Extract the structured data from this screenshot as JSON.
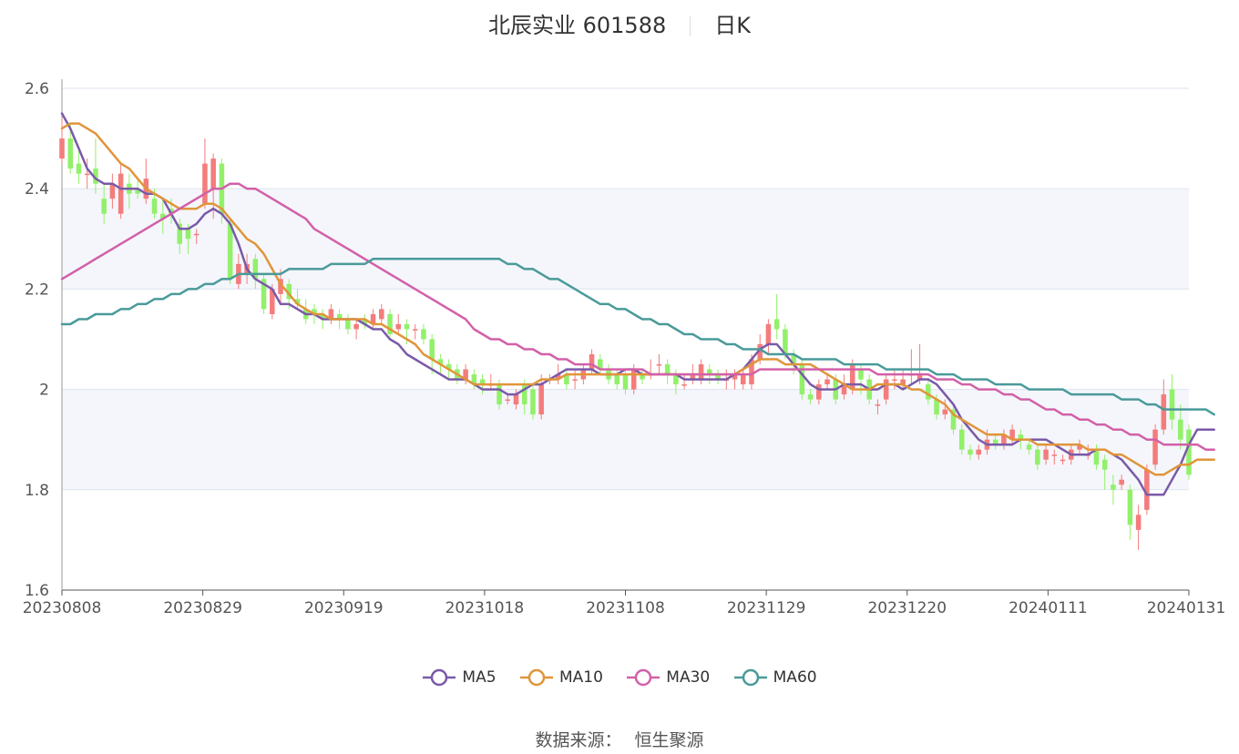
{
  "title": {
    "stock": "北辰实业 601588",
    "period": "日K"
  },
  "source": {
    "label": "数据来源：",
    "name": "恒生聚源"
  },
  "colors": {
    "up": "#f47c7c",
    "down": "#92f06a",
    "MA5": "#7a5aa8",
    "MA10": "#e0953a",
    "MA30": "#d260a8",
    "MA60": "#4a9a9a",
    "band": "#f4f6fb",
    "grid": "#dde3ee"
  },
  "chart_data": {
    "type": "candlestick",
    "ylim": [
      1.6,
      2.6
    ],
    "y_ticks": [
      "1.6",
      "1.8",
      "2",
      "2.2",
      "2.4",
      "2.6"
    ],
    "x_ticks": [
      "20230808",
      "20230829",
      "20230919",
      "20231018",
      "20231108",
      "20231129",
      "20231220",
      "20240111",
      "20240131"
    ],
    "grid": true,
    "legend_position": "bottom",
    "candles": [
      [
        2.46,
        2.5,
        2.54,
        2.45
      ],
      [
        2.5,
        2.44,
        2.53,
        2.43
      ],
      [
        2.45,
        2.43,
        2.48,
        2.41
      ],
      [
        2.43,
        2.43,
        2.46,
        2.4
      ],
      [
        2.44,
        2.41,
        2.5,
        2.39
      ],
      [
        2.38,
        2.35,
        2.41,
        2.33
      ],
      [
        2.38,
        2.41,
        2.43,
        2.36
      ],
      [
        2.35,
        2.43,
        2.45,
        2.34
      ],
      [
        2.41,
        2.39,
        2.43,
        2.36
      ],
      [
        2.4,
        2.39,
        2.42,
        2.38
      ],
      [
        2.38,
        2.42,
        2.46,
        2.37
      ],
      [
        2.38,
        2.35,
        2.4,
        2.34
      ],
      [
        2.35,
        2.34,
        2.38,
        2.31
      ],
      [
        2.36,
        2.35,
        2.38,
        2.33
      ],
      [
        2.33,
        2.29,
        2.34,
        2.27
      ],
      [
        2.32,
        2.3,
        2.33,
        2.27
      ],
      [
        2.31,
        2.31,
        2.32,
        2.29
      ],
      [
        2.37,
        2.45,
        2.5,
        2.36
      ],
      [
        2.4,
        2.46,
        2.47,
        2.34
      ],
      [
        2.45,
        2.35,
        2.46,
        2.33
      ],
      [
        2.33,
        2.22,
        2.34,
        2.21
      ],
      [
        2.21,
        2.25,
        2.27,
        2.2
      ],
      [
        2.23,
        2.25,
        2.27,
        2.21
      ],
      [
        2.26,
        2.22,
        2.27,
        2.2
      ],
      [
        2.22,
        2.16,
        2.23,
        2.15
      ],
      [
        2.15,
        2.2,
        2.21,
        2.14
      ],
      [
        2.19,
        2.22,
        2.24,
        2.17
      ],
      [
        2.21,
        2.18,
        2.22,
        2.16
      ],
      [
        2.18,
        2.17,
        2.2,
        2.16
      ],
      [
        2.16,
        2.14,
        2.18,
        2.13
      ],
      [
        2.16,
        2.15,
        2.17,
        2.13
      ],
      [
        2.15,
        2.14,
        2.16,
        2.12
      ],
      [
        2.14,
        2.16,
        2.17,
        2.13
      ],
      [
        2.15,
        2.14,
        2.16,
        2.12
      ],
      [
        2.14,
        2.12,
        2.15,
        2.11
      ],
      [
        2.12,
        2.13,
        2.14,
        2.1
      ],
      [
        2.14,
        2.13,
        2.15,
        2.12
      ],
      [
        2.13,
        2.15,
        2.16,
        2.12
      ],
      [
        2.14,
        2.16,
        2.17,
        2.13
      ],
      [
        2.15,
        2.11,
        2.16,
        2.1
      ],
      [
        2.12,
        2.13,
        2.15,
        2.11
      ],
      [
        2.13,
        2.12,
        2.14,
        2.09
      ],
      [
        2.12,
        2.12,
        2.13,
        2.1
      ],
      [
        2.12,
        2.1,
        2.13,
        2.09
      ],
      [
        2.1,
        2.06,
        2.11,
        2.03
      ],
      [
        2.06,
        2.05,
        2.07,
        2.03
      ],
      [
        2.05,
        2.04,
        2.06,
        2.02
      ],
      [
        2.04,
        2.02,
        2.05,
        2.01
      ],
      [
        2.02,
        2.04,
        2.05,
        2.01
      ],
      [
        2.03,
        2.01,
        2.04,
        2.0
      ],
      [
        2.02,
        2.01,
        2.03,
        1.99
      ],
      [
        2.01,
        2.01,
        2.03,
        2.0
      ],
      [
        2.01,
        1.97,
        2.02,
        1.96
      ],
      [
        1.98,
        1.98,
        1.99,
        1.97
      ],
      [
        1.97,
        1.99,
        2.0,
        1.96
      ],
      [
        2.01,
        1.97,
        2.02,
        1.95
      ],
      [
        2.0,
        1.95,
        2.01,
        1.94
      ],
      [
        1.95,
        2.01,
        2.03,
        1.94
      ],
      [
        2.02,
        2.02,
        2.03,
        2.01
      ],
      [
        2.02,
        2.03,
        2.05,
        2.01
      ],
      [
        2.03,
        2.01,
        2.04,
        2.0
      ],
      [
        2.02,
        2.02,
        2.04,
        2.0
      ],
      [
        2.02,
        2.04,
        2.05,
        2.01
      ],
      [
        2.04,
        2.07,
        2.08,
        2.03
      ],
      [
        2.06,
        2.04,
        2.07,
        2.03
      ],
      [
        2.04,
        2.02,
        2.05,
        2.01
      ],
      [
        2.03,
        2.01,
        2.04,
        2.0
      ],
      [
        2.03,
        2.0,
        2.04,
        1.99
      ],
      [
        2.0,
        2.04,
        2.05,
        1.99
      ],
      [
        2.03,
        2.02,
        2.04,
        2.01
      ],
      [
        2.03,
        2.03,
        2.06,
        2.02
      ],
      [
        2.05,
        2.05,
        2.07,
        2.03
      ],
      [
        2.05,
        2.03,
        2.06,
        2.01
      ],
      [
        2.03,
        2.01,
        2.04,
        1.99
      ],
      [
        2.01,
        2.01,
        2.03,
        2.0
      ],
      [
        2.02,
        2.03,
        2.05,
        2.01
      ],
      [
        2.02,
        2.05,
        2.06,
        2.01
      ],
      [
        2.04,
        2.03,
        2.05,
        2.01
      ],
      [
        2.03,
        2.02,
        2.04,
        2.01
      ],
      [
        2.02,
        2.02,
        2.04,
        2.0
      ],
      [
        2.02,
        2.03,
        2.04,
        2.0
      ],
      [
        2.01,
        2.03,
        2.04,
        2.0
      ],
      [
        2.01,
        2.06,
        2.07,
        2.0
      ],
      [
        2.06,
        2.09,
        2.11,
        2.05
      ],
      [
        2.09,
        2.13,
        2.14,
        2.07
      ],
      [
        2.14,
        2.12,
        2.19,
        2.1
      ],
      [
        2.12,
        2.07,
        2.13,
        2.06
      ],
      [
        2.07,
        2.05,
        2.08,
        2.03
      ],
      [
        2.05,
        1.99,
        2.06,
        1.98
      ],
      [
        1.99,
        1.98,
        2.0,
        1.97
      ],
      [
        1.98,
        2.01,
        2.02,
        1.97
      ],
      [
        2.01,
        2.02,
        2.03,
        2.0
      ],
      [
        2.02,
        1.98,
        2.03,
        1.97
      ],
      [
        1.99,
        2.01,
        2.03,
        1.98
      ],
      [
        2.0,
        2.05,
        2.06,
        1.99
      ],
      [
        2.04,
        2.02,
        2.05,
        1.99
      ],
      [
        2.02,
        1.98,
        2.03,
        1.97
      ],
      [
        1.97,
        1.97,
        1.98,
        1.95
      ],
      [
        1.98,
        2.02,
        2.03,
        1.97
      ],
      [
        2.02,
        2.02,
        2.04,
        2.0
      ],
      [
        2.01,
        2.02,
        2.04,
        2.0
      ],
      [
        2.03,
        2.03,
        2.08,
        2.01
      ],
      [
        2.02,
        2.03,
        2.09,
        2.01
      ],
      [
        2.01,
        1.98,
        2.02,
        1.97
      ],
      [
        1.98,
        1.95,
        1.99,
        1.94
      ],
      [
        1.95,
        1.96,
        1.98,
        1.94
      ],
      [
        1.96,
        1.92,
        1.97,
        1.91
      ],
      [
        1.92,
        1.88,
        1.93,
        1.87
      ],
      [
        1.88,
        1.87,
        1.89,
        1.86
      ],
      [
        1.87,
        1.88,
        1.89,
        1.86
      ],
      [
        1.88,
        1.9,
        1.92,
        1.87
      ],
      [
        1.9,
        1.89,
        1.91,
        1.88
      ],
      [
        1.89,
        1.91,
        1.92,
        1.88
      ],
      [
        1.9,
        1.92,
        1.93,
        1.89
      ],
      [
        1.91,
        1.9,
        1.92,
        1.88
      ],
      [
        1.89,
        1.88,
        1.9,
        1.87
      ],
      [
        1.88,
        1.85,
        1.89,
        1.84
      ],
      [
        1.86,
        1.88,
        1.89,
        1.85
      ],
      [
        1.87,
        1.87,
        1.88,
        1.85
      ],
      [
        1.86,
        1.86,
        1.87,
        1.85
      ],
      [
        1.86,
        1.88,
        1.89,
        1.85
      ],
      [
        1.88,
        1.89,
        1.9,
        1.87
      ],
      [
        1.87,
        1.87,
        1.89,
        1.86
      ],
      [
        1.88,
        1.85,
        1.89,
        1.84
      ],
      [
        1.86,
        1.84,
        1.87,
        1.8
      ],
      [
        1.81,
        1.8,
        1.83,
        1.77
      ],
      [
        1.81,
        1.82,
        1.83,
        1.8
      ],
      [
        1.8,
        1.73,
        1.81,
        1.7
      ],
      [
        1.72,
        1.75,
        1.77,
        1.68
      ],
      [
        1.76,
        1.84,
        1.85,
        1.75
      ],
      [
        1.85,
        1.92,
        1.93,
        1.84
      ],
      [
        1.92,
        1.99,
        2.02,
        1.91
      ],
      [
        2.0,
        1.94,
        2.03,
        1.92
      ],
      [
        1.94,
        1.9,
        1.97,
        1.88
      ],
      [
        1.92,
        1.83,
        1.93,
        1.82
      ]
    ],
    "series": [
      {
        "name": "MA5",
        "values": [
          2.55,
          2.52,
          2.48,
          2.44,
          2.42,
          2.41,
          2.41,
          2.4,
          2.4,
          2.4,
          2.39,
          2.39,
          2.38,
          2.35,
          2.32,
          2.32,
          2.33,
          2.35,
          2.36,
          2.35,
          2.33,
          2.29,
          2.24,
          2.22,
          2.21,
          2.2,
          2.17,
          2.17,
          2.16,
          2.15,
          2.15,
          2.14,
          2.14,
          2.14,
          2.14,
          2.14,
          2.13,
          2.12,
          2.12,
          2.1,
          2.09,
          2.07,
          2.06,
          2.05,
          2.04,
          2.03,
          2.02,
          2.02,
          2.02,
          2.01,
          2.0,
          2.0,
          2.0,
          1.99,
          1.99,
          2.0,
          2.01,
          2.01,
          2.02,
          2.03,
          2.04,
          2.04,
          2.04,
          2.04,
          2.03,
          2.03,
          2.03,
          2.04,
          2.04,
          2.03,
          2.03,
          2.03,
          2.03,
          2.03,
          2.02,
          2.02,
          2.02,
          2.02,
          2.02,
          2.02,
          2.03,
          2.04,
          2.06,
          2.08,
          2.09,
          2.09,
          2.07,
          2.05,
          2.03,
          2.01,
          2.0,
          2.0,
          2.0,
          2.01,
          2.01,
          2.01,
          2.0,
          2.0,
          2.01,
          2.01,
          2.0,
          2.01,
          2.02,
          2.02,
          2.01,
          1.99,
          1.97,
          1.94,
          1.92,
          1.9,
          1.89,
          1.89,
          1.89,
          1.89,
          1.9,
          1.9,
          1.9,
          1.9,
          1.89,
          1.88,
          1.87,
          1.87,
          1.87,
          1.88,
          1.88,
          1.87,
          1.86,
          1.84,
          1.82,
          1.79,
          1.79,
          1.79,
          1.82,
          1.85,
          1.89,
          1.92,
          1.92,
          1.92
        ]
      },
      {
        "name": "MA10",
        "values": [
          2.52,
          2.53,
          2.53,
          2.52,
          2.51,
          2.49,
          2.47,
          2.45,
          2.44,
          2.42,
          2.4,
          2.39,
          2.38,
          2.37,
          2.36,
          2.36,
          2.36,
          2.37,
          2.37,
          2.36,
          2.34,
          2.32,
          2.3,
          2.29,
          2.27,
          2.24,
          2.21,
          2.19,
          2.17,
          2.16,
          2.15,
          2.15,
          2.14,
          2.14,
          2.14,
          2.14,
          2.14,
          2.13,
          2.13,
          2.12,
          2.11,
          2.1,
          2.09,
          2.07,
          2.06,
          2.05,
          2.04,
          2.03,
          2.02,
          2.01,
          2.01,
          2.01,
          2.01,
          2.01,
          2.01,
          2.01,
          2.01,
          2.02,
          2.02,
          2.02,
          2.03,
          2.03,
          2.03,
          2.03,
          2.03,
          2.03,
          2.03,
          2.03,
          2.03,
          2.03,
          2.03,
          2.03,
          2.03,
          2.03,
          2.03,
          2.03,
          2.03,
          2.03,
          2.03,
          2.03,
          2.03,
          2.04,
          2.05,
          2.06,
          2.06,
          2.06,
          2.05,
          2.05,
          2.05,
          2.05,
          2.04,
          2.03,
          2.02,
          2.01,
          2.0,
          2.0,
          2.0,
          2.01,
          2.01,
          2.01,
          2.01,
          2.0,
          2.0,
          1.99,
          1.98,
          1.97,
          1.95,
          1.94,
          1.93,
          1.92,
          1.91,
          1.91,
          1.91,
          1.9,
          1.9,
          1.9,
          1.89,
          1.89,
          1.89,
          1.89,
          1.89,
          1.89,
          1.88,
          1.88,
          1.88,
          1.87,
          1.87,
          1.86,
          1.85,
          1.84,
          1.83,
          1.83,
          1.84,
          1.85,
          1.85,
          1.86,
          1.86,
          1.86
        ]
      },
      {
        "name": "MA30",
        "values": [
          2.22,
          2.23,
          2.24,
          2.25,
          2.26,
          2.27,
          2.28,
          2.29,
          2.3,
          2.31,
          2.32,
          2.33,
          2.34,
          2.35,
          2.36,
          2.37,
          2.38,
          2.39,
          2.4,
          2.4,
          2.41,
          2.41,
          2.4,
          2.4,
          2.39,
          2.38,
          2.37,
          2.36,
          2.35,
          2.34,
          2.32,
          2.31,
          2.3,
          2.29,
          2.28,
          2.27,
          2.26,
          2.25,
          2.24,
          2.23,
          2.22,
          2.21,
          2.2,
          2.19,
          2.18,
          2.17,
          2.16,
          2.15,
          2.14,
          2.12,
          2.11,
          2.1,
          2.1,
          2.09,
          2.09,
          2.08,
          2.08,
          2.07,
          2.07,
          2.06,
          2.06,
          2.05,
          2.05,
          2.05,
          2.04,
          2.04,
          2.04,
          2.04,
          2.04,
          2.04,
          2.03,
          2.03,
          2.03,
          2.03,
          2.03,
          2.03,
          2.03,
          2.03,
          2.03,
          2.03,
          2.03,
          2.03,
          2.03,
          2.04,
          2.04,
          2.04,
          2.04,
          2.04,
          2.04,
          2.04,
          2.04,
          2.04,
          2.04,
          2.04,
          2.04,
          2.04,
          2.04,
          2.03,
          2.03,
          2.03,
          2.03,
          2.03,
          2.03,
          2.03,
          2.02,
          2.02,
          2.02,
          2.01,
          2.01,
          2.0,
          2.0,
          2.0,
          1.99,
          1.99,
          1.98,
          1.98,
          1.97,
          1.96,
          1.96,
          1.95,
          1.95,
          1.94,
          1.94,
          1.93,
          1.93,
          1.92,
          1.92,
          1.91,
          1.91,
          1.9,
          1.9,
          1.89,
          1.89,
          1.89,
          1.89,
          1.89,
          1.88,
          1.88
        ]
      },
      {
        "name": "MA60",
        "values": [
          2.13,
          2.13,
          2.14,
          2.14,
          2.15,
          2.15,
          2.15,
          2.16,
          2.16,
          2.17,
          2.17,
          2.18,
          2.18,
          2.19,
          2.19,
          2.2,
          2.2,
          2.21,
          2.21,
          2.22,
          2.22,
          2.23,
          2.23,
          2.23,
          2.23,
          2.23,
          2.23,
          2.24,
          2.24,
          2.24,
          2.24,
          2.24,
          2.25,
          2.25,
          2.25,
          2.25,
          2.25,
          2.26,
          2.26,
          2.26,
          2.26,
          2.26,
          2.26,
          2.26,
          2.26,
          2.26,
          2.26,
          2.26,
          2.26,
          2.26,
          2.26,
          2.26,
          2.26,
          2.25,
          2.25,
          2.24,
          2.24,
          2.23,
          2.22,
          2.22,
          2.21,
          2.2,
          2.19,
          2.18,
          2.17,
          2.17,
          2.16,
          2.16,
          2.15,
          2.14,
          2.14,
          2.13,
          2.13,
          2.12,
          2.11,
          2.11,
          2.1,
          2.1,
          2.1,
          2.09,
          2.09,
          2.08,
          2.08,
          2.08,
          2.07,
          2.07,
          2.07,
          2.07,
          2.06,
          2.06,
          2.06,
          2.06,
          2.06,
          2.05,
          2.05,
          2.05,
          2.05,
          2.05,
          2.04,
          2.04,
          2.04,
          2.04,
          2.04,
          2.04,
          2.03,
          2.03,
          2.03,
          2.02,
          2.02,
          2.02,
          2.02,
          2.01,
          2.01,
          2.01,
          2.01,
          2.0,
          2.0,
          2.0,
          2.0,
          2.0,
          1.99,
          1.99,
          1.99,
          1.99,
          1.99,
          1.99,
          1.98,
          1.98,
          1.98,
          1.97,
          1.97,
          1.96,
          1.96,
          1.96,
          1.96,
          1.96,
          1.96,
          1.95
        ]
      }
    ]
  }
}
